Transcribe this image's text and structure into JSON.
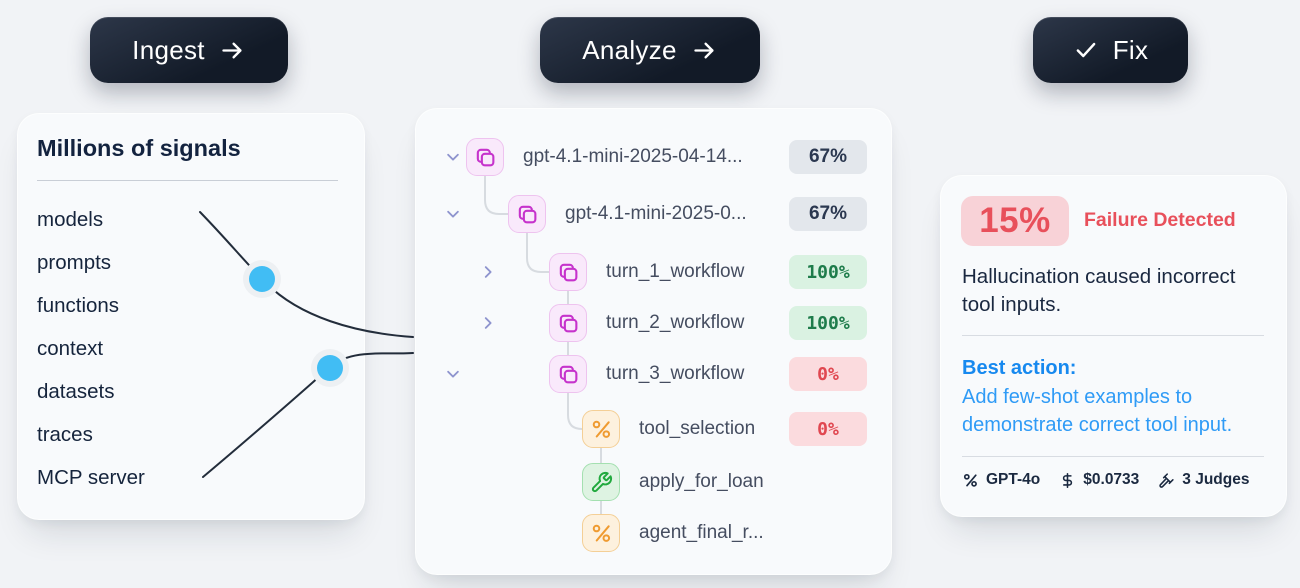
{
  "buttons": [
    {
      "label": "Ingest",
      "icon": "arrow-right"
    },
    {
      "label": "Analyze",
      "icon": "arrow-right"
    },
    {
      "label": "Fix",
      "icon": "check"
    }
  ],
  "signals_card": {
    "title": "Millions of signals",
    "items": [
      "models",
      "prompts",
      "functions",
      "context",
      "datasets",
      "traces",
      "MCP server"
    ]
  },
  "trace_card": {
    "rows": [
      {
        "label": "gpt-4.1-mini-2025-04-14...",
        "badge": "67%",
        "badge_type": "neutral",
        "icon": "workflow",
        "chevron": "down"
      },
      {
        "label": "gpt-4.1-mini-2025-0...",
        "badge": "67%",
        "badge_type": "neutral",
        "icon": "workflow",
        "chevron": "down"
      },
      {
        "label": "turn_1_workflow",
        "badge": "100%",
        "badge_type": "success",
        "icon": "workflow",
        "chevron": "right"
      },
      {
        "label": "turn_2_workflow",
        "badge": "100%",
        "badge_type": "success",
        "icon": "workflow",
        "chevron": "right"
      },
      {
        "label": "turn_3_workflow",
        "badge": "0%",
        "badge_type": "failure",
        "icon": "workflow",
        "chevron": "down"
      },
      {
        "label": "tool_selection",
        "badge": "0%",
        "badge_type": "failure",
        "icon": "route",
        "chevron": null
      },
      {
        "label": "apply_for_loan",
        "badge": null,
        "badge_type": null,
        "icon": "wrench",
        "chevron": null
      },
      {
        "label": "agent_final_r...",
        "badge": null,
        "badge_type": null,
        "icon": "route",
        "chevron": null
      }
    ]
  },
  "failure_card": {
    "rate": "15%",
    "title": "Failure Detected",
    "description": "Hallucination caused incorrect tool inputs.",
    "best_action_label": "Best action:",
    "best_action": "Add few-shot examples to demonstrate correct tool input.",
    "meta": [
      {
        "icon": "model-icon",
        "label": "GPT-4o"
      },
      {
        "icon": "dollar-icon",
        "label": "$0.0733"
      },
      {
        "icon": "gavel-icon",
        "label": "3 Judges"
      }
    ]
  },
  "colors": {
    "page_bg": "#f1f3f6",
    "card_bg": "#f8fafc",
    "button_bg": "#121a27",
    "accent_blue": "#1789ef",
    "link_blue": "#2f9bf6",
    "failure_red": "#e8505b",
    "failure_badge_bg": "#f8d2d7",
    "success_green": "#1e7c4b",
    "success_badge_bg": "#daf2e2",
    "neutral_badge_bg": "#e3e7ec",
    "node_pink": "#c633cc",
    "node_orange": "#ef9b31",
    "node_green": "#21a93e",
    "signal_dot_blue": "#41bdf4",
    "dark_navy": "#16233b"
  }
}
